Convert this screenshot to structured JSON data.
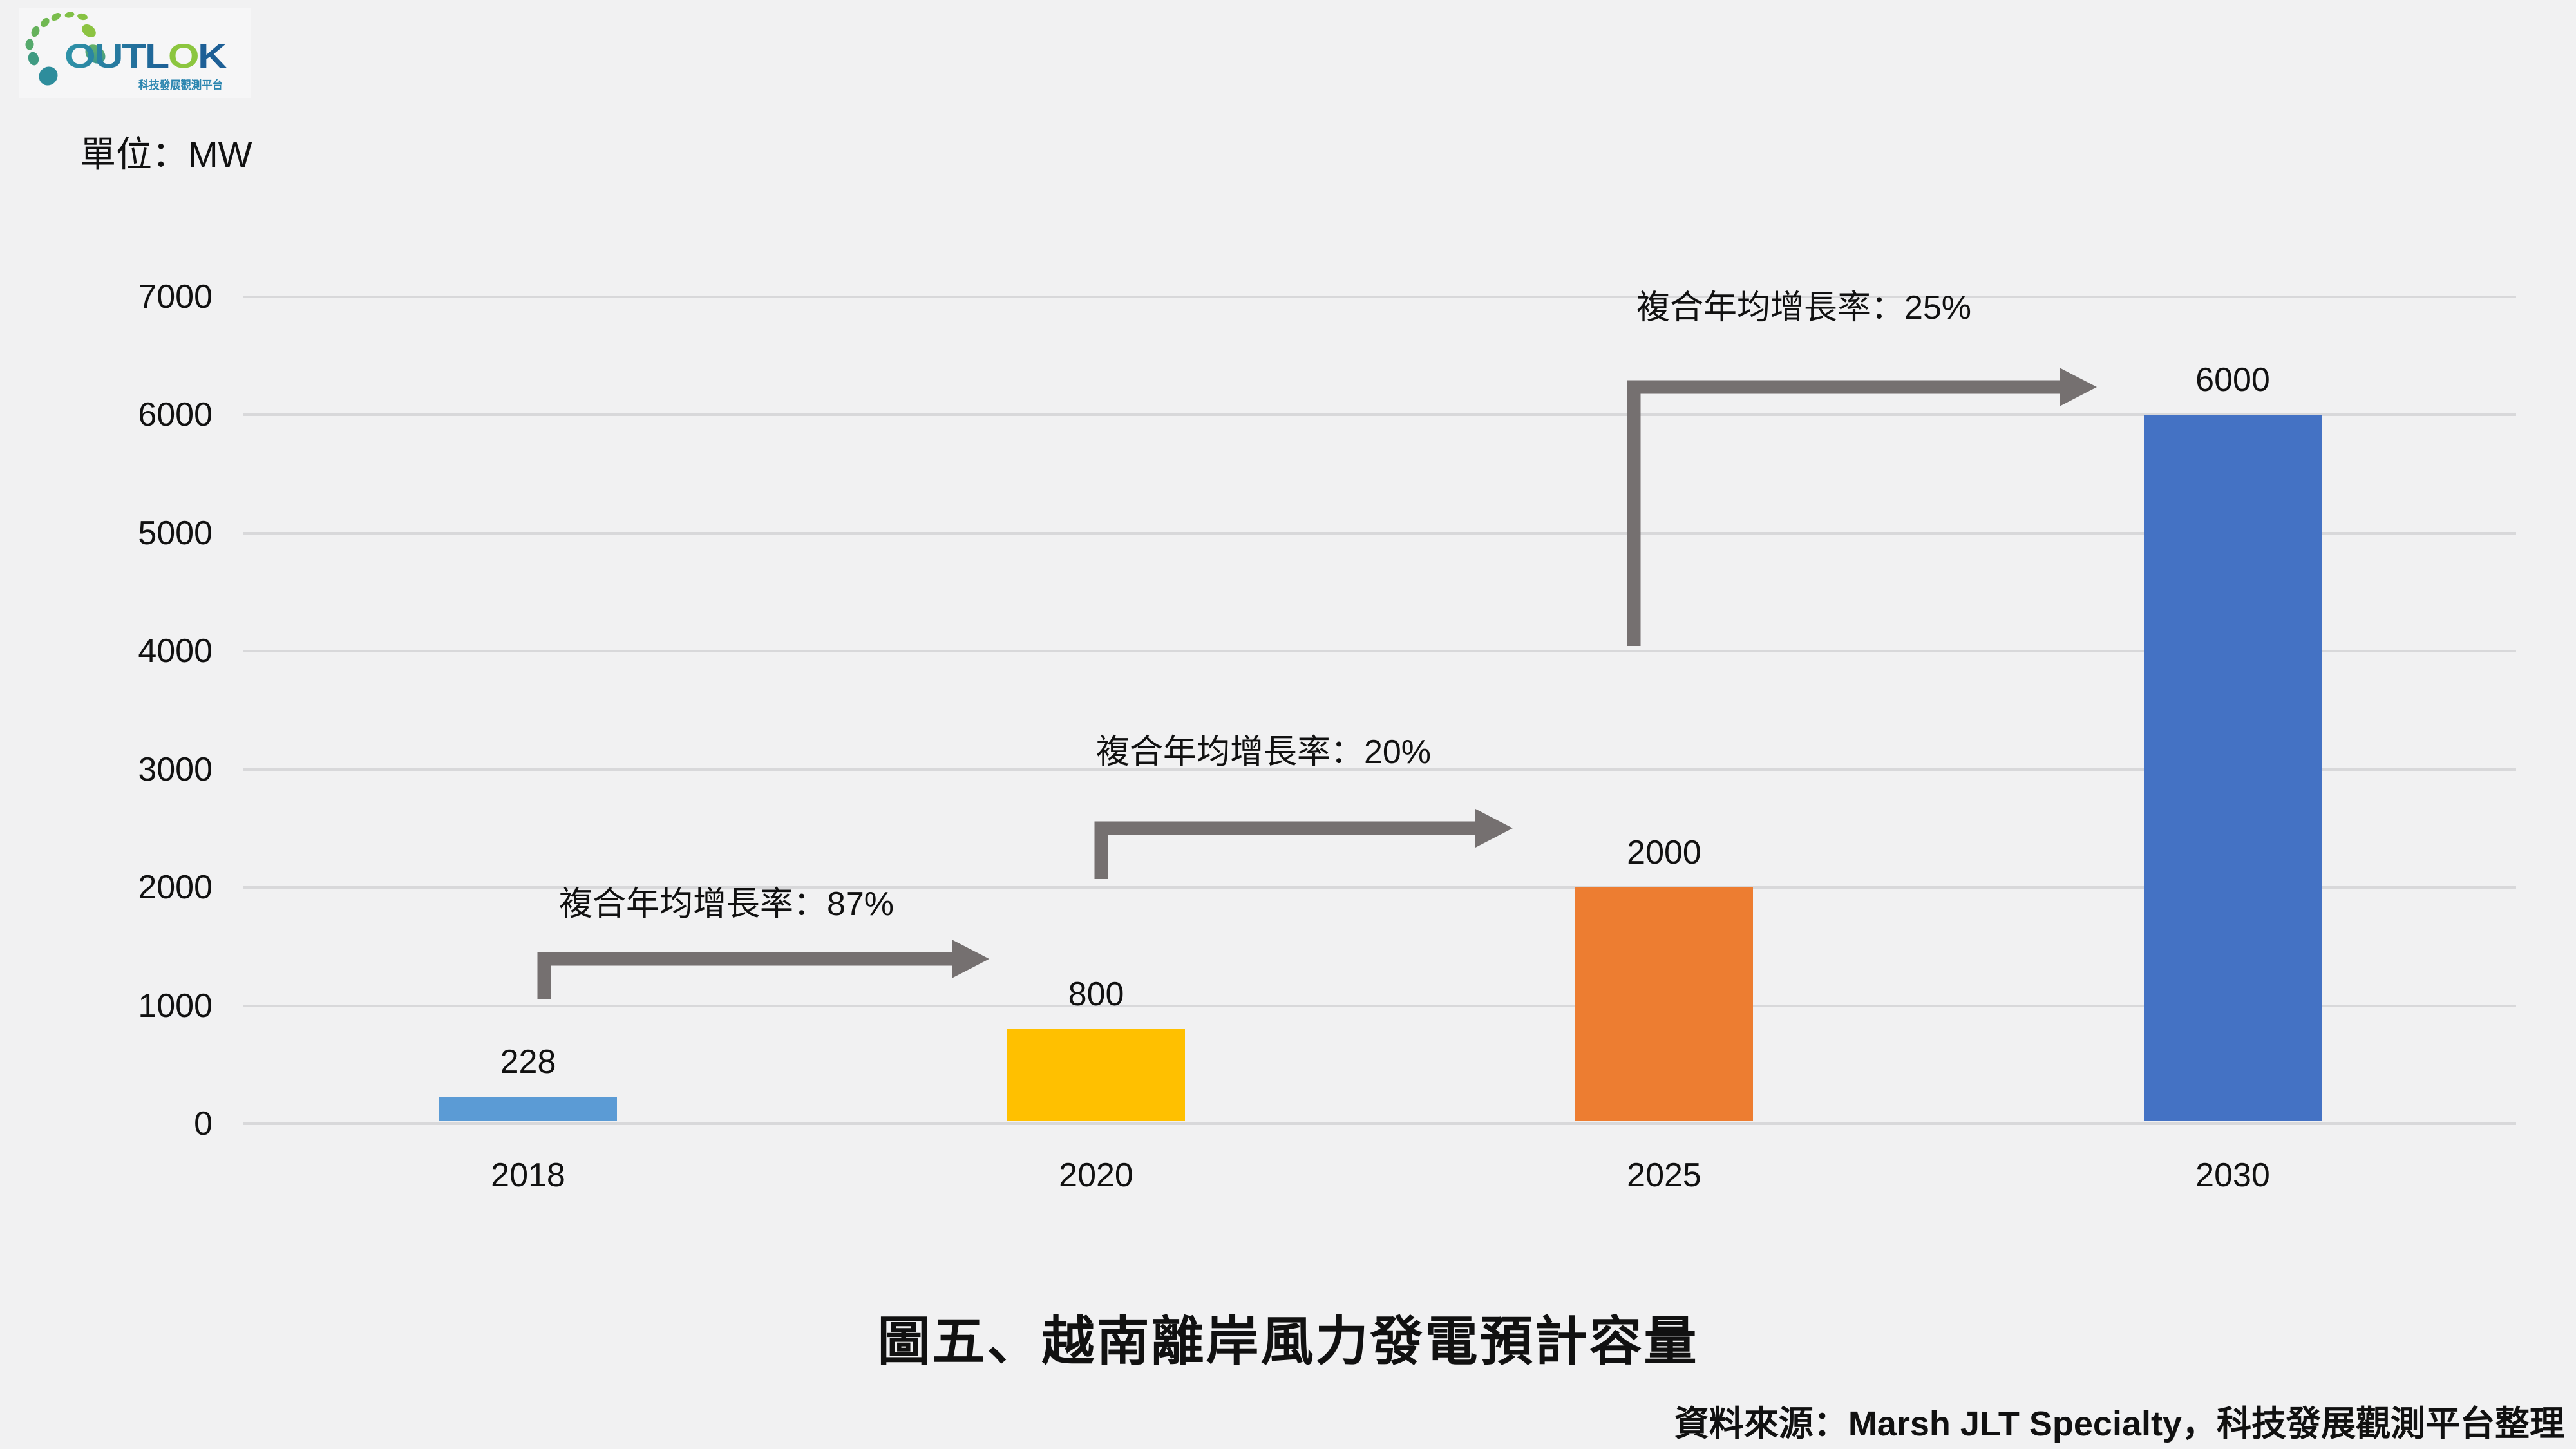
{
  "page": {
    "background": "#F1F1F2"
  },
  "logo": {
    "brand_prefix": "OUTL",
    "brand_green_letter": "O",
    "brand_suffix": "K",
    "subtitle": "科技發展觀測平台",
    "colors": {
      "brand_start": "#2F93A8",
      "brand_end": "#1D5F96",
      "green_letter": "#8CC63F",
      "subtitle": "#2C86B0"
    }
  },
  "unit_label": "單位：MW",
  "chart_data": {
    "type": "bar",
    "title": "圖五、越南離岸風力發電預計容量",
    "unit": "MW",
    "categories": [
      "2018",
      "2020",
      "2025",
      "2030"
    ],
    "values": [
      228,
      800,
      2000,
      6000
    ],
    "bar_colors": [
      "#5B9BD5",
      "#FFC000",
      "#ED7D31",
      "#4472C4"
    ],
    "ylim": [
      0,
      7000
    ],
    "yticks": [
      0,
      1000,
      2000,
      3000,
      4000,
      5000,
      6000,
      7000
    ],
    "grid": true,
    "legend": false,
    "annotations": [
      {
        "label": "複合年均增長率：87%",
        "cagr": "87%",
        "from": "2018",
        "to": "2020"
      },
      {
        "label": "複合年均增長率：20%",
        "cagr": "20%",
        "from": "2020",
        "to": "2025"
      },
      {
        "label": "複合年均增長率：25%",
        "cagr": "25%",
        "from": "2025",
        "to": "2030"
      }
    ],
    "source": "資料來源：Marsh JLT Specialty，科技發展觀測平台整理"
  },
  "colors": {
    "arrow": "#757070",
    "gridline": "#D8D8DA",
    "text": "#111111"
  }
}
